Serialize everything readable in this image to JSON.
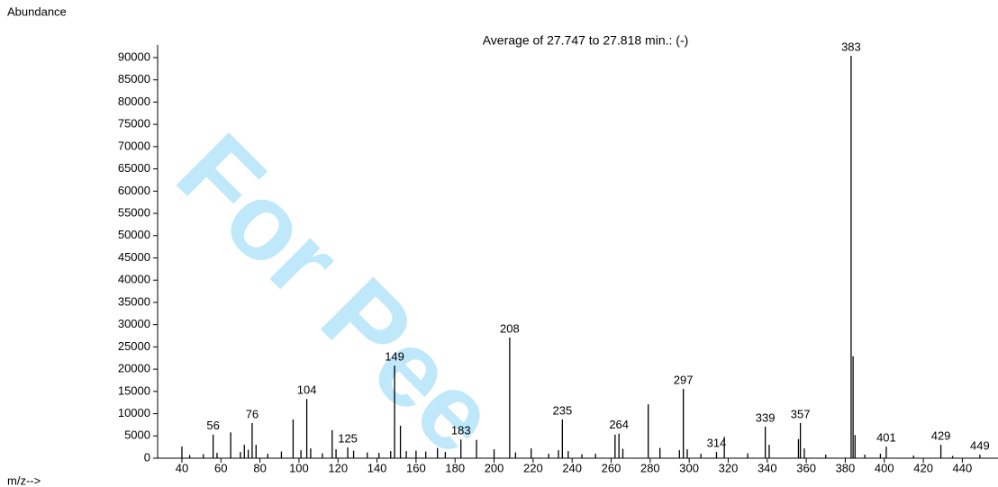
{
  "chart_data": {
    "type": "stem",
    "title": "Average of 27.747 to 27.818 min.:  (-)",
    "y_label": "Abundance",
    "x_label": "m/z-->",
    "watermark": "For Pee",
    "color": "#000000",
    "xlim": [
      27,
      458
    ],
    "xticks": [
      40,
      60,
      80,
      100,
      120,
      140,
      160,
      180,
      200,
      220,
      240,
      260,
      280,
      300,
      320,
      340,
      360,
      380,
      400,
      420,
      440
    ],
    "ylim": [
      0,
      92000
    ],
    "yticks": [
      0,
      5000,
      10000,
      15000,
      20000,
      25000,
      30000,
      35000,
      40000,
      45000,
      50000,
      55000,
      60000,
      65000,
      70000,
      75000,
      80000,
      85000,
      90000
    ],
    "x": [
      40,
      44,
      51,
      56,
      58,
      65,
      70,
      72,
      74,
      76,
      78,
      84,
      91,
      97,
      101,
      104,
      106,
      112,
      117,
      119,
      125,
      128,
      135,
      141,
      147,
      149,
      152,
      155,
      160,
      165,
      171,
      175,
      183,
      191,
      200,
      208,
      211,
      219,
      228,
      233,
      235,
      238,
      245,
      252,
      262,
      264,
      266,
      279,
      285,
      295,
      297,
      299,
      306,
      314,
      318,
      330,
      339,
      341,
      356,
      357,
      359,
      370,
      383,
      384,
      385,
      390,
      398,
      401,
      415,
      429,
      435,
      449
    ],
    "values": [
      2600,
      700,
      900,
      5300,
      1200,
      5800,
      1400,
      3000,
      1900,
      7900,
      3000,
      1000,
      1500,
      8700,
      1800,
      13300,
      2200,
      1100,
      6300,
      2000,
      2400,
      1700,
      1300,
      1200,
      1600,
      20800,
      7300,
      1600,
      1700,
      1500,
      2300,
      1400,
      4200,
      4100,
      2000,
      27100,
      1300,
      2200,
      1000,
      1800,
      8700,
      1600,
      900,
      1000,
      5300,
      5500,
      2100,
      12100,
      2300,
      1800,
      15600,
      2000,
      1000,
      1400,
      4800,
      1100,
      7100,
      3000,
      4300,
      7900,
      2200,
      800,
      90400,
      22900,
      5200,
      800,
      1000,
      2600,
      600,
      3000,
      500,
      800
    ],
    "peak_labels": [
      null,
      null,
      null,
      "56",
      null,
      null,
      null,
      null,
      null,
      "76",
      null,
      null,
      null,
      null,
      null,
      "104",
      null,
      null,
      null,
      null,
      "125",
      null,
      null,
      null,
      null,
      "149",
      null,
      null,
      null,
      null,
      null,
      null,
      "183",
      null,
      null,
      "208",
      null,
      null,
      null,
      null,
      "235",
      null,
      null,
      null,
      null,
      "264",
      null,
      null,
      null,
      null,
      "297",
      null,
      null,
      "314",
      null,
      null,
      "339",
      null,
      null,
      "357",
      null,
      null,
      "383",
      null,
      null,
      null,
      null,
      "401",
      null,
      "429",
      null,
      "449"
    ]
  }
}
